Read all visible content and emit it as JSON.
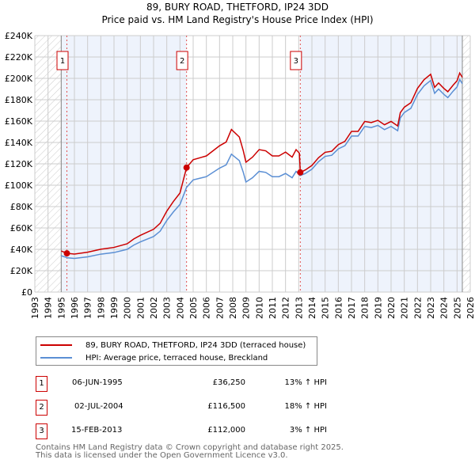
{
  "title_line1": "89, BURY ROAD, THETFORD, IP24 3DD",
  "title_line2": "Price paid vs. HM Land Registry's House Price Index (HPI)",
  "chart_data": {
    "type": "line",
    "xlim": [
      1993,
      2026
    ],
    "ylim": [
      0,
      240000
    ],
    "x_ticks": [
      1993,
      1994,
      1995,
      1996,
      1997,
      1998,
      1999,
      2000,
      2001,
      2002,
      2003,
      2004,
      2005,
      2006,
      2007,
      2008,
      2009,
      2010,
      2011,
      2012,
      2013,
      2014,
      2015,
      2016,
      2017,
      2018,
      2019,
      2020,
      2021,
      2022,
      2023,
      2024,
      2025,
      2026
    ],
    "y_ticks": [
      0,
      20000,
      40000,
      60000,
      80000,
      100000,
      120000,
      140000,
      160000,
      180000,
      200000,
      220000,
      240000
    ],
    "y_tick_labels": [
      "£0",
      "£20K",
      "£40K",
      "£60K",
      "£80K",
      "£100K",
      "£120K",
      "£140K",
      "£160K",
      "£180K",
      "£200K",
      "£220K",
      "£240K"
    ],
    "grid": true,
    "hatched_ranges": [
      [
        1993,
        1995
      ],
      [
        2025.4,
        2026
      ]
    ],
    "shaded_ranges": [
      [
        1995,
        2004.5
      ],
      [
        2013.12,
        2025.4
      ]
    ],
    "colors": {
      "property": "#cc0000",
      "hpi": "#5b8fd4",
      "shade": "#eef3fc",
      "grid": "#cccccc"
    },
    "series": [
      {
        "name": "89, BURY ROAD, THETFORD, IP24 3DD (terraced house)",
        "color": "#cc0000",
        "x": [
          1995.0,
          1995.43,
          1995.5,
          1996,
          1997,
          1998,
          1999,
          2000,
          2000.5,
          2001,
          2002,
          2002.5,
          2003,
          2003.5,
          2004,
          2004.5,
          2005,
          2006,
          2007,
          2007.5,
          2007.9,
          2008.5,
          2008.8,
          2009,
          2009.5,
          2010,
          2010.5,
          2011,
          2011.5,
          2012,
          2012.5,
          2012.8,
          2013.05,
          2013.12,
          2013.5,
          2014,
          2014.5,
          2015,
          2015.5,
          2016,
          2016.5,
          2017,
          2017.5,
          2018,
          2018.5,
          2019,
          2019.5,
          2020,
          2020.5,
          2020.7,
          2021,
          2021.5,
          2022,
          2022.5,
          2023,
          2023.3,
          2023.6,
          2024,
          2024.3,
          2024.7,
          2025,
          2025.2,
          2025.4
        ],
        "y": [
          38500,
          36250,
          36200,
          35600,
          37300,
          40100,
          41800,
          45200,
          49700,
          53100,
          58800,
          64400,
          75700,
          84800,
          92700,
          116500,
          123900,
          127400,
          136900,
          140400,
          152200,
          145100,
          132200,
          121500,
          126300,
          133300,
          132200,
          127400,
          127400,
          131000,
          126300,
          133300,
          130000,
          112000,
          114300,
          118500,
          125700,
          130800,
          131800,
          138000,
          141100,
          150400,
          150400,
          159700,
          158600,
          160700,
          156600,
          159700,
          155500,
          167900,
          173000,
          177200,
          190600,
          198800,
          203900,
          191600,
          195700,
          190600,
          187500,
          193600,
          197800,
          205000,
          200900
        ]
      },
      {
        "name": "HPI: Average price, terraced house, Breckland",
        "color": "#5b8fd4",
        "x": [
          1995.0,
          1995.5,
          1996,
          1997,
          1998,
          1999,
          2000,
          2000.5,
          2001,
          2002,
          2002.5,
          2003,
          2003.5,
          2004,
          2004.5,
          2005,
          2006,
          2007,
          2007.5,
          2007.9,
          2008.5,
          2008.8,
          2009,
          2009.5,
          2010,
          2010.5,
          2011,
          2011.5,
          2012,
          2012.5,
          2012.8,
          2013.1,
          2013.5,
          2014,
          2014.5,
          2015,
          2015.5,
          2016,
          2016.5,
          2017,
          2017.5,
          2018,
          2018.5,
          2019,
          2019.5,
          2020,
          2020.5,
          2020.7,
          2021,
          2021.5,
          2022,
          2022.5,
          2023,
          2023.3,
          2023.6,
          2024,
          2024.3,
          2024.7,
          2025,
          2025.2,
          2025.4
        ],
        "y": [
          34000,
          32000,
          31500,
          33000,
          35500,
          37000,
          40000,
          44000,
          47000,
          52000,
          57000,
          67000,
          75000,
          82000,
          98000,
          105000,
          108000,
          116000,
          119000,
          129000,
          123000,
          112000,
          103000,
          107000,
          113000,
          112000,
          108000,
          108000,
          111000,
          107000,
          113000,
          109000,
          111000,
          115000,
          122000,
          127000,
          128000,
          134000,
          137000,
          146000,
          146000,
          155000,
          154000,
          156000,
          152000,
          155000,
          151000,
          163000,
          168000,
          172000,
          185000,
          193000,
          198000,
          186000,
          190000,
          185000,
          182000,
          188000,
          192000,
          199000,
          195000
        ]
      }
    ],
    "sales": [
      {
        "label": "1",
        "x": 1995.43,
        "y": 36250
      },
      {
        "label": "2",
        "x": 2004.5,
        "y": 116500
      },
      {
        "label": "3",
        "x": 2013.12,
        "y": 112000
      }
    ]
  },
  "legend": {
    "property": "89, BURY ROAD, THETFORD, IP24 3DD (terraced house)",
    "hpi": "HPI: Average price, terraced house, Breckland"
  },
  "transactions": [
    {
      "num": "1",
      "date": "06-JUN-1995",
      "price": "£36,250",
      "hpi": "13% ↑ HPI"
    },
    {
      "num": "2",
      "date": "02-JUL-2004",
      "price": "£116,500",
      "hpi": "18% ↑ HPI"
    },
    {
      "num": "3",
      "date": "15-FEB-2013",
      "price": "£112,000",
      "hpi": "3% ↑ HPI"
    }
  ],
  "footer": {
    "line1": "Contains HM Land Registry data © Crown copyright and database right 2025.",
    "line2": "This data is licensed under the Open Government Licence v3.0."
  }
}
